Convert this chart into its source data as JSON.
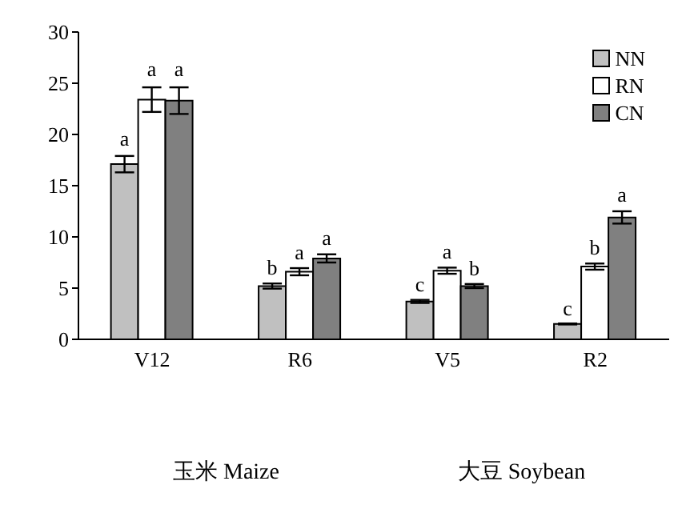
{
  "chart_data": {
    "type": "bar",
    "categories": [
      "V12",
      "R6",
      "V5",
      "R2"
    ],
    "series": [
      {
        "name": "NN",
        "color": "#c0c0c0",
        "values": [
          17.1,
          5.2,
          3.7,
          1.5
        ],
        "errors": [
          0.8,
          0.25,
          0.15,
          0.05
        ],
        "value_labels": [
          "a",
          "b",
          "c",
          "c"
        ]
      },
      {
        "name": "RN",
        "color": "#ffffff",
        "values": [
          23.4,
          6.6,
          6.7,
          7.1
        ],
        "errors": [
          1.2,
          0.35,
          0.3,
          0.3
        ],
        "value_labels": [
          "a",
          "a",
          "a",
          "b"
        ]
      },
      {
        "name": "CN",
        "color": "#808080",
        "values": [
          23.3,
          7.9,
          5.2,
          11.9
        ],
        "errors": [
          1.3,
          0.4,
          0.2,
          0.6
        ],
        "value_labels": [
          "a",
          "a",
          "b",
          "a"
        ]
      }
    ],
    "ylim": [
      0,
      30
    ],
    "yticks": [
      0,
      5,
      10,
      15,
      20,
      25,
      30
    ],
    "grid": false,
    "legend": "top right",
    "annotations": [
      "玉米 Maize",
      "大豆 Soybean"
    ]
  }
}
